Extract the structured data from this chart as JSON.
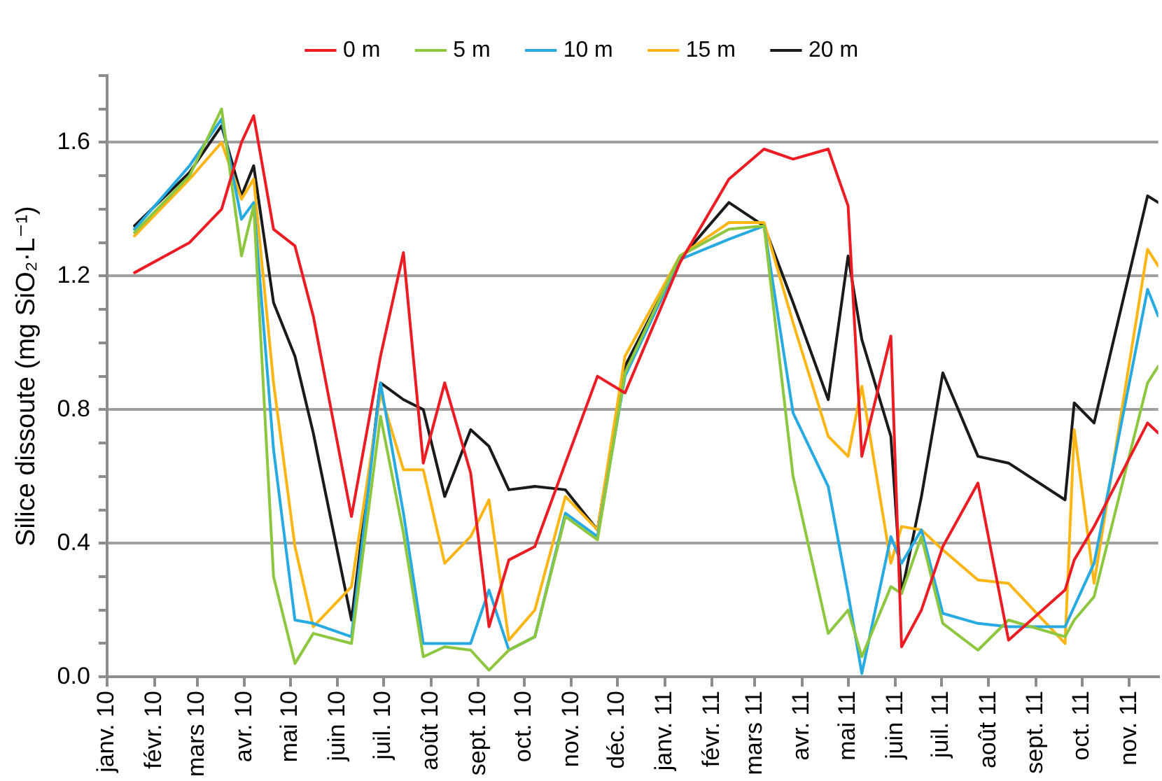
{
  "chart_data": {
    "type": "line",
    "ylabel": "Silice dissoute (mg SiO₂·L⁻¹)",
    "x": [
      "2010-01-19",
      "2010-02-24",
      "2010-03-17",
      "2010-03-30",
      "2010-04-07",
      "2010-04-20",
      "2010-05-04",
      "2010-05-16",
      "2010-06-10",
      "2010-06-29",
      "2010-07-14",
      "2010-07-27",
      "2010-08-10",
      "2010-08-27",
      "2010-09-08",
      "2010-09-21",
      "2010-10-08",
      "2010-10-28",
      "2010-11-18",
      "2010-12-06",
      "2011-01-11",
      "2011-02-12",
      "2011-03-07",
      "2011-03-26",
      "2011-04-18",
      "2011-05-01",
      "2011-05-10",
      "2011-05-29",
      "2011-06-05",
      "2011-06-18",
      "2011-07-02",
      "2011-07-25",
      "2011-08-14",
      "2011-09-20",
      "2011-09-26",
      "2011-10-09",
      "2011-11-13",
      "2011-11-20"
    ],
    "series": [
      {
        "name": "0 m",
        "color": "#ed1c24",
        "values": [
          1.21,
          1.3,
          1.4,
          1.6,
          1.68,
          1.34,
          1.29,
          1.08,
          0.48,
          0.96,
          1.27,
          0.64,
          0.88,
          0.61,
          0.15,
          0.35,
          0.39,
          0.64,
          0.9,
          0.85,
          1.24,
          1.49,
          1.58,
          1.55,
          1.58,
          1.41,
          0.66,
          1.02,
          0.09,
          0.2,
          0.39,
          0.58,
          0.11,
          0.26,
          0.35,
          0.45,
          0.76,
          0.73
        ]
      },
      {
        "name": "5 m",
        "color": "#8dc63f",
        "values": [
          1.33,
          1.5,
          1.7,
          1.26,
          1.41,
          0.3,
          0.04,
          0.13,
          0.1,
          0.78,
          0.43,
          0.06,
          0.09,
          0.08,
          0.02,
          0.08,
          0.12,
          0.48,
          0.41,
          0.91,
          1.26,
          1.34,
          1.35,
          0.6,
          0.13,
          0.2,
          0.06,
          0.27,
          0.25,
          0.42,
          0.16,
          0.08,
          0.17,
          0.12,
          0.17,
          0.24,
          0.88,
          0.93
        ]
      },
      {
        "name": "10 m",
        "color": "#27aae1",
        "values": [
          1.34,
          1.53,
          1.67,
          1.37,
          1.42,
          0.68,
          0.17,
          0.16,
          0.12,
          0.88,
          0.49,
          0.1,
          0.1,
          0.1,
          0.26,
          0.08,
          0.12,
          0.49,
          0.42,
          0.9,
          1.25,
          1.31,
          1.35,
          0.79,
          0.57,
          0.25,
          0.01,
          0.42,
          0.34,
          0.44,
          0.19,
          0.16,
          0.15,
          0.15,
          0.21,
          0.34,
          1.16,
          1.08
        ]
      },
      {
        "name": "15 m",
        "color": "#fbb615",
        "values": [
          1.32,
          1.49,
          1.6,
          1.43,
          1.49,
          0.88,
          0.39,
          0.15,
          0.27,
          0.85,
          0.62,
          0.62,
          0.34,
          0.42,
          0.53,
          0.11,
          0.2,
          0.54,
          0.44,
          0.96,
          1.26,
          1.36,
          1.36,
          1.06,
          0.72,
          0.66,
          0.87,
          0.34,
          0.45,
          0.44,
          0.38,
          0.29,
          0.28,
          0.1,
          0.74,
          0.28,
          1.28,
          1.23
        ]
      },
      {
        "name": "20 m",
        "color": "#1a1a1a",
        "values": [
          1.35,
          1.51,
          1.65,
          1.44,
          1.53,
          1.12,
          0.96,
          0.73,
          0.17,
          0.88,
          0.83,
          0.8,
          0.54,
          0.74,
          0.69,
          0.56,
          0.57,
          0.56,
          0.44,
          0.93,
          1.25,
          1.42,
          1.35,
          1.12,
          0.83,
          1.26,
          1.01,
          0.72,
          0.25,
          0.54,
          0.91,
          0.66,
          0.64,
          0.53,
          0.82,
          0.76,
          1.44,
          1.42
        ]
      }
    ],
    "xlim": [
      "2010-01-01",
      "2011-11-20"
    ],
    "xticks": [
      {
        "value": "2010-01-01",
        "label": "janv. 10"
      },
      {
        "value": "2010-02-01",
        "label": "févr. 10"
      },
      {
        "value": "2010-03-01",
        "label": "mars 10"
      },
      {
        "value": "2010-04-01",
        "label": "avr. 10"
      },
      {
        "value": "2010-05-01",
        "label": "mai 10"
      },
      {
        "value": "2010-06-01",
        "label": "juin 10"
      },
      {
        "value": "2010-07-01",
        "label": "juil. 10"
      },
      {
        "value": "2010-08-01",
        "label": "août 10"
      },
      {
        "value": "2010-09-01",
        "label": "sept. 10"
      },
      {
        "value": "2010-10-01",
        "label": "oct. 10"
      },
      {
        "value": "2010-11-01",
        "label": "nov. 10"
      },
      {
        "value": "2010-12-01",
        "label": "déc. 10"
      },
      {
        "value": "2011-01-01",
        "label": "janv. 11"
      },
      {
        "value": "2011-02-01",
        "label": "févr. 11"
      },
      {
        "value": "2011-03-01",
        "label": "mars 11"
      },
      {
        "value": "2011-04-01",
        "label": "avr. 11"
      },
      {
        "value": "2011-05-01",
        "label": "mai 11"
      },
      {
        "value": "2011-06-01",
        "label": "juin 11"
      },
      {
        "value": "2011-07-01",
        "label": "juil. 11"
      },
      {
        "value": "2011-08-01",
        "label": "août 11"
      },
      {
        "value": "2011-09-01",
        "label": "sept. 11"
      },
      {
        "value": "2011-10-01",
        "label": "oct. 11"
      },
      {
        "value": "2011-11-01",
        "label": "nov. 11"
      }
    ],
    "ylim": [
      0,
      1.8
    ],
    "yticks": [
      {
        "value": 0,
        "label": "0.0"
      },
      {
        "value": 0.1,
        "label": null
      },
      {
        "value": 0.2,
        "label": null
      },
      {
        "value": 0.3,
        "label": null
      },
      {
        "value": 0.4,
        "label": "0.4"
      },
      {
        "value": 0.5,
        "label": null
      },
      {
        "value": 0.6,
        "label": null
      },
      {
        "value": 0.7,
        "label": null
      },
      {
        "value": 0.8,
        "label": "0.8"
      },
      {
        "value": 0.9,
        "label": null
      },
      {
        "value": 1.0,
        "label": null
      },
      {
        "value": 1.1,
        "label": null
      },
      {
        "value": 1.2,
        "label": "1.2"
      },
      {
        "value": 1.3,
        "label": null
      },
      {
        "value": 1.4,
        "label": null
      },
      {
        "value": 1.5,
        "label": null
      },
      {
        "value": 1.6,
        "label": "1.6"
      },
      {
        "value": 1.7,
        "label": null
      },
      {
        "value": 1.8,
        "label": null
      }
    ],
    "grid": "y",
    "legend": "top",
    "marker": "none",
    "line_style": "solid"
  }
}
